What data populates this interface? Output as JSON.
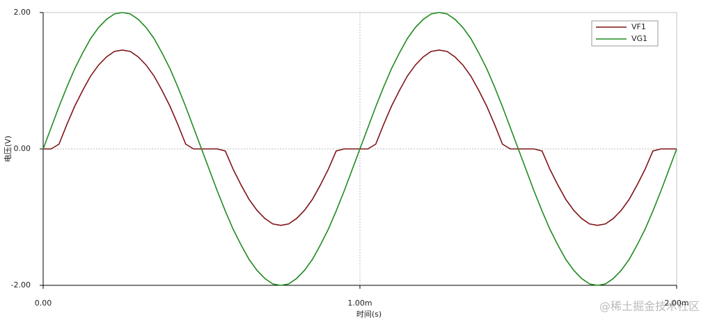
{
  "chart_data": {
    "type": "line",
    "x_label": "时间(s)",
    "y_label": "电压(V)",
    "watermark": "@稀土掘金技术社区",
    "x": [
      0,
      2.5e-05,
      5e-05,
      7.5e-05,
      0.0001,
      0.000125,
      0.00015,
      0.000175,
      0.0002,
      0.000225,
      0.00025,
      0.000275,
      0.0003,
      0.000325,
      0.00035,
      0.000375,
      0.0004,
      0.000425,
      0.00045,
      0.000475,
      0.0005,
      0.000525,
      0.00055,
      0.000575,
      0.0006,
      0.000625,
      0.00065,
      0.000675,
      0.0007,
      0.000725,
      0.00075,
      0.000775,
      0.0008,
      0.000825,
      0.00085,
      0.000875,
      0.0009,
      0.000925,
      0.00095,
      0.000975,
      0.001,
      0.001025,
      0.00105,
      0.001075,
      0.0011,
      0.001125,
      0.00115,
      0.001175,
      0.0012,
      0.001225,
      0.00125,
      0.001275,
      0.0013,
      0.001325,
      0.00135,
      0.001375,
      0.0014,
      0.001425,
      0.00145,
      0.001475,
      0.0015,
      0.001525,
      0.00155,
      0.001575,
      0.0016,
      0.001625,
      0.00165,
      0.001675,
      0.0017,
      0.001725,
      0.00175,
      0.001775,
      0.0018,
      0.001825,
      0.00185,
      0.001875,
      0.0019,
      0.001925,
      0.00195,
      0.001975,
      0.002
    ],
    "series": [
      {
        "name": "VF1",
        "color": "#7f1416",
        "values": [
          0,
          0,
          0.07,
          0.36,
          0.63,
          0.86,
          1.07,
          1.23,
          1.35,
          1.43,
          1.45,
          1.43,
          1.35,
          1.23,
          1.07,
          0.86,
          0.63,
          0.36,
          0.07,
          0,
          0,
          0,
          0,
          -0.03,
          -0.3,
          -0.53,
          -0.74,
          -0.9,
          -1.02,
          -1.1,
          -1.12,
          -1.1,
          -1.02,
          -0.9,
          -0.74,
          -0.53,
          -0.3,
          -0.03,
          0,
          0,
          0,
          0,
          0.07,
          0.36,
          0.63,
          0.86,
          1.07,
          1.23,
          1.35,
          1.43,
          1.45,
          1.43,
          1.35,
          1.23,
          1.07,
          0.86,
          0.63,
          0.36,
          0.07,
          0,
          0,
          0,
          0,
          -0.03,
          -0.3,
          -0.53,
          -0.74,
          -0.9,
          -1.02,
          -1.1,
          -1.12,
          -1.1,
          -1.02,
          -0.9,
          -0.74,
          -0.53,
          -0.3,
          -0.03,
          0,
          0,
          0
        ]
      },
      {
        "name": "VG1",
        "color": "#1f8a1f",
        "values": [
          0,
          0.31,
          0.62,
          0.91,
          1.18,
          1.41,
          1.62,
          1.78,
          1.9,
          1.98,
          2,
          1.98,
          1.9,
          1.78,
          1.62,
          1.41,
          1.18,
          0.91,
          0.62,
          0.31,
          0,
          -0.31,
          -0.62,
          -0.91,
          -1.18,
          -1.41,
          -1.62,
          -1.78,
          -1.9,
          -1.98,
          -2,
          -1.98,
          -1.9,
          -1.78,
          -1.62,
          -1.41,
          -1.18,
          -0.91,
          -0.62,
          -0.31,
          0,
          0.31,
          0.62,
          0.91,
          1.18,
          1.41,
          1.62,
          1.78,
          1.9,
          1.98,
          2,
          1.98,
          1.9,
          1.78,
          1.62,
          1.41,
          1.18,
          0.91,
          0.62,
          0.31,
          0,
          -0.31,
          -0.62,
          -0.91,
          -1.18,
          -1.41,
          -1.62,
          -1.78,
          -1.9,
          -1.98,
          -2,
          -1.98,
          -1.9,
          -1.78,
          -1.62,
          -1.41,
          -1.18,
          -0.91,
          -0.62,
          -0.31,
          0
        ]
      }
    ],
    "xlim": [
      0,
      0.002
    ],
    "xticks": [
      {
        "value": 0,
        "label": "0.00"
      },
      {
        "value": 0.001,
        "label": "1.00m"
      },
      {
        "value": 0.002,
        "label": "2.00m"
      }
    ],
    "ylim": [
      -2,
      2
    ],
    "yticks": [
      {
        "value": 2,
        "label": "2.00"
      },
      {
        "value": 0,
        "label": "0.00"
      },
      {
        "value": -2,
        "label": "-2.00"
      }
    ],
    "grid": true,
    "legend": "top-right"
  }
}
